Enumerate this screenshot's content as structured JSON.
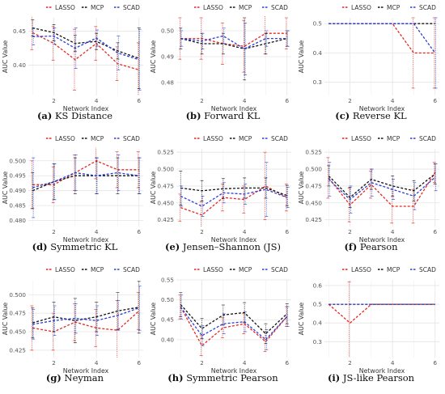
{
  "legend": [
    "LASSO",
    "MCP",
    "SCAD"
  ],
  "colors": {
    "LASSO": "#e8271f",
    "MCP": "#111111",
    "SCAD": "#2a3fd6",
    "grid": "#e4e4e4",
    "text": "#333333"
  },
  "chart_data": [
    {
      "type": "line",
      "letter": "(a)",
      "title": "KS Distance",
      "xlabel": "Network Index",
      "ylabel": "AUC Value",
      "xlim": [
        0.8,
        6.2
      ],
      "xticks": [
        2,
        4,
        6
      ],
      "ylim": [
        0.355,
        0.47
      ],
      "yticks": [
        0.35,
        0.4,
        0.45
      ],
      "ytick_labels": [
        "0.35",
        "0.40",
        "0.45"
      ],
      "x": [
        1,
        2,
        3,
        4,
        5,
        6
      ],
      "series": [
        {
          "name": "LASSO",
          "values": [
            0.448,
            0.432,
            0.408,
            0.432,
            0.402,
            0.393
          ],
          "err": [
            0.025,
            0.025,
            0.045,
            0.025,
            0.025,
            0.04
          ]
        },
        {
          "name": "MCP",
          "values": [
            0.455,
            0.448,
            0.432,
            0.435,
            0.421,
            0.41
          ],
          "err": [
            0.012,
            0.012,
            0.012,
            0.012,
            0.012,
            0.045
          ]
        },
        {
          "name": "SCAD",
          "values": [
            0.442,
            0.443,
            0.425,
            0.44,
            0.418,
            0.408
          ],
          "err": [
            0.012,
            0.012,
            0.03,
            0.012,
            0.025,
            0.045
          ]
        }
      ]
    },
    {
      "type": "line",
      "letter": "(b)",
      "title": "Forward KL",
      "xlabel": "Network Index",
      "ylabel": "AUC Value",
      "xlim": [
        0.8,
        6.2
      ],
      "xticks": [
        2,
        4,
        6
      ],
      "ylim": [
        0.475,
        0.505
      ],
      "yticks": [
        0.48,
        0.49,
        0.5
      ],
      "ytick_labels": [
        "0.48",
        "0.49",
        "0.50"
      ],
      "x": [
        1,
        2,
        3,
        4,
        5,
        6
      ],
      "series": [
        {
          "name": "LASSO",
          "values": [
            0.497,
            0.497,
            0.495,
            0.494,
            0.499,
            0.499
          ],
          "err": [
            0.008,
            0.008,
            0.008,
            0.01,
            0.008,
            0.006
          ]
        },
        {
          "name": "MCP",
          "values": [
            0.497,
            0.495,
            0.495,
            0.493,
            0.495,
            0.497
          ],
          "err": [
            0.004,
            0.004,
            0.004,
            0.012,
            0.004,
            0.003
          ]
        },
        {
          "name": "SCAD",
          "values": [
            0.497,
            0.496,
            0.498,
            0.493,
            0.497,
            0.497
          ],
          "err": [
            0.003,
            0.003,
            0.003,
            0.01,
            0.003,
            0.003
          ]
        }
      ]
    },
    {
      "type": "line",
      "letter": "(c)",
      "title": "Reverse KL",
      "xlabel": "Network Index",
      "ylabel": "AUC Value",
      "xlim": [
        0.8,
        6.2
      ],
      "xticks": [
        2,
        4,
        6
      ],
      "ylim": [
        0.255,
        0.52
      ],
      "yticks": [
        0.3,
        0.4,
        0.5
      ],
      "ytick_labels": [
        "0.3",
        "0.4",
        "0.5"
      ],
      "x": [
        1,
        2,
        3,
        4,
        5,
        6
      ],
      "series": [
        {
          "name": "LASSO",
          "values": [
            0.5,
            0.5,
            0.5,
            0.5,
            0.4,
            0.4
          ],
          "err": [
            0,
            0,
            0,
            0,
            0.12,
            0.12
          ]
        },
        {
          "name": "MCP",
          "values": [
            0.5,
            0.5,
            0.5,
            0.5,
            0.5,
            0.5
          ],
          "err": [
            0,
            0,
            0,
            0,
            0,
            0
          ]
        },
        {
          "name": "SCAD",
          "values": [
            0.5,
            0.5,
            0.5,
            0.5,
            0.5,
            0.4
          ],
          "err": [
            0,
            0,
            0,
            0,
            0,
            0.12
          ]
        }
      ]
    },
    {
      "type": "line",
      "letter": "(d)",
      "title": "Symmetric KL",
      "xlabel": "Network Index",
      "ylabel": "AUC Value",
      "xlim": [
        0.8,
        6.2
      ],
      "xticks": [
        2,
        4,
        6
      ],
      "ylim": [
        0.478,
        0.504
      ],
      "yticks": [
        0.48,
        0.485,
        0.49,
        0.495,
        0.5
      ],
      "ytick_labels": [
        "0.480",
        "0.485",
        "0.490",
        "0.495",
        "0.500"
      ],
      "x": [
        1,
        2,
        3,
        4,
        5,
        6
      ],
      "series": [
        {
          "name": "LASSO",
          "values": [
            0.492,
            0.492,
            0.496,
            0.5,
            0.497,
            0.497
          ],
          "err": [
            0.008,
            0.006,
            0.006,
            0.006,
            0.006,
            0.006
          ]
        },
        {
          "name": "MCP",
          "values": [
            0.49,
            0.493,
            0.495,
            0.495,
            0.495,
            0.495
          ],
          "err": [
            0.006,
            0.006,
            0.006,
            0.006,
            0.006,
            0.006
          ]
        },
        {
          "name": "SCAD",
          "values": [
            0.491,
            0.493,
            0.496,
            0.495,
            0.496,
            0.495
          ],
          "err": [
            0.01,
            0.006,
            0.006,
            0.006,
            0.006,
            0.006
          ]
        }
      ]
    },
    {
      "type": "line",
      "letter": "(e)",
      "title": "Jensen–Shannon (JS)",
      "xlabel": "Network Index",
      "ylabel": "AUC Value",
      "xlim": [
        0.8,
        6.2
      ],
      "xticks": [
        2,
        4,
        6
      ],
      "ylim": [
        0.415,
        0.53
      ],
      "yticks": [
        0.425,
        0.45,
        0.475,
        0.5,
        0.525
      ],
      "ytick_labels": [
        "0.425",
        "0.450",
        "0.475",
        "0.500",
        "0.525"
      ],
      "x": [
        1,
        2,
        3,
        4,
        5,
        6
      ],
      "series": [
        {
          "name": "LASSO",
          "values": [
            0.443,
            0.432,
            0.458,
            0.455,
            0.475,
            0.458
          ],
          "err": [
            0.02,
            0.02,
            0.02,
            0.02,
            0.05,
            0.02
          ]
        },
        {
          "name": "MCP",
          "values": [
            0.472,
            0.468,
            0.471,
            0.472,
            0.472,
            0.461
          ],
          "err": [
            0.025,
            0.015,
            0.015,
            0.015,
            0.015,
            0.015
          ]
        },
        {
          "name": "SCAD",
          "values": [
            0.46,
            0.445,
            0.465,
            0.463,
            0.47,
            0.458
          ],
          "err": [
            0.015,
            0.015,
            0.015,
            0.015,
            0.04,
            0.015
          ]
        }
      ]
    },
    {
      "type": "line",
      "letter": "(f)",
      "title": "Pearson",
      "xlabel": "Network Index",
      "ylabel": "AUC Value",
      "xlim": [
        0.8,
        6.2
      ],
      "xticks": [
        2,
        4,
        6
      ],
      "ylim": [
        0.415,
        0.53
      ],
      "yticks": [
        0.425,
        0.45,
        0.475,
        0.5,
        0.525
      ],
      "ytick_labels": [
        "0.425",
        "0.450",
        "0.475",
        "0.500",
        "0.525"
      ],
      "x": [
        1,
        2,
        3,
        4,
        5,
        6
      ],
      "series": [
        {
          "name": "LASSO",
          "values": [
            0.487,
            0.447,
            0.477,
            0.445,
            0.445,
            0.495
          ],
          "err": [
            0.03,
            0.025,
            0.02,
            0.025,
            0.025,
            0.015
          ]
        },
        {
          "name": "MCP",
          "values": [
            0.49,
            0.458,
            0.485,
            0.475,
            0.468,
            0.493
          ],
          "err": [
            0.015,
            0.015,
            0.015,
            0.015,
            0.015,
            0.015
          ]
        },
        {
          "name": "SCAD",
          "values": [
            0.485,
            0.455,
            0.48,
            0.47,
            0.46,
            0.488
          ],
          "err": [
            0.025,
            0.02,
            0.02,
            0.015,
            0.02,
            0.02
          ]
        }
      ]
    },
    {
      "type": "line",
      "letter": "(g)",
      "title": "Neyman",
      "xlabel": "Network Index",
      "ylabel": "AUC Value",
      "xlim": [
        0.8,
        6.2
      ],
      "xticks": [
        2,
        4,
        6
      ],
      "ylim": [
        0.415,
        0.52
      ],
      "yticks": [
        0.425,
        0.45,
        0.475,
        0.5
      ],
      "ytick_labels": [
        "0.425",
        "0.450",
        "0.475",
        "0.500"
      ],
      "x": [
        1,
        2,
        3,
        4,
        5,
        6
      ],
      "series": [
        {
          "name": "LASSO",
          "values": [
            0.455,
            0.45,
            0.463,
            0.455,
            0.452,
            0.478
          ],
          "err": [
            0.03,
            0.025,
            0.025,
            0.025,
            0.04,
            0.025
          ]
        },
        {
          "name": "MCP",
          "values": [
            0.462,
            0.47,
            0.465,
            0.47,
            0.478,
            0.483
          ],
          "err": [
            0.02,
            0.02,
            0.03,
            0.02,
            0.025,
            0.035
          ]
        },
        {
          "name": "SCAD",
          "values": [
            0.46,
            0.465,
            0.468,
            0.465,
            0.472,
            0.482
          ],
          "err": [
            0.02,
            0.02,
            0.02,
            0.02,
            0.02,
            0.03
          ]
        }
      ]
    },
    {
      "type": "line",
      "letter": "(h)",
      "title": "Symmetric Pearson",
      "xlabel": "Network Index",
      "ylabel": "AUC Value",
      "xlim": [
        0.8,
        6.2
      ],
      "xticks": [
        2,
        4,
        6
      ],
      "ylim": [
        0.355,
        0.55
      ],
      "yticks": [
        0.35,
        0.4,
        0.45,
        0.5,
        0.55
      ],
      "ytick_labels": [
        "0.35",
        "0.40",
        "0.45",
        "0.50",
        "0.55"
      ],
      "x": [
        1,
        2,
        3,
        4,
        5,
        6
      ],
      "series": [
        {
          "name": "LASSO",
          "values": [
            0.482,
            0.385,
            0.43,
            0.44,
            0.395,
            0.458
          ],
          "err": [
            0.03,
            0.025,
            0.025,
            0.025,
            0.025,
            0.025
          ]
        },
        {
          "name": "MCP",
          "values": [
            0.488,
            0.428,
            0.462,
            0.468,
            0.415,
            0.465
          ],
          "err": [
            0.03,
            0.025,
            0.025,
            0.025,
            0.025,
            0.025
          ]
        },
        {
          "name": "SCAD",
          "values": [
            0.482,
            0.41,
            0.44,
            0.445,
            0.4,
            0.458
          ],
          "err": [
            0.03,
            0.025,
            0.025,
            0.025,
            0.025,
            0.025
          ]
        }
      ]
    },
    {
      "type": "line",
      "letter": "(i)",
      "title": "JS-like Pearson",
      "xlabel": "Network Index",
      "ylabel": "AUC Value",
      "xlim": [
        0.8,
        6.2
      ],
      "xticks": [
        2,
        4,
        6
      ],
      "ylim": [
        0.215,
        0.63
      ],
      "yticks": [
        0.3,
        0.4,
        0.5,
        0.6
      ],
      "ytick_labels": [
        "0.3",
        "0.4",
        "0.5",
        "0.6"
      ],
      "x": [
        1,
        2,
        3,
        4,
        5,
        6
      ],
      "series": [
        {
          "name": "LASSO",
          "values": [
            0.5,
            0.4,
            0.5,
            0.5,
            0.5,
            0.5
          ],
          "err": [
            0,
            0.22,
            0,
            0,
            0,
            0
          ]
        },
        {
          "name": "MCP",
          "values": [
            0.5,
            0.5,
            0.5,
            0.5,
            0.5,
            0.5
          ],
          "err": [
            0,
            0,
            0,
            0,
            0,
            0
          ]
        },
        {
          "name": "SCAD",
          "values": [
            0.5,
            0.5,
            0.5,
            0.5,
            0.5,
            0.5
          ],
          "err": [
            0,
            0,
            0,
            0,
            0,
            0
          ]
        }
      ]
    }
  ]
}
